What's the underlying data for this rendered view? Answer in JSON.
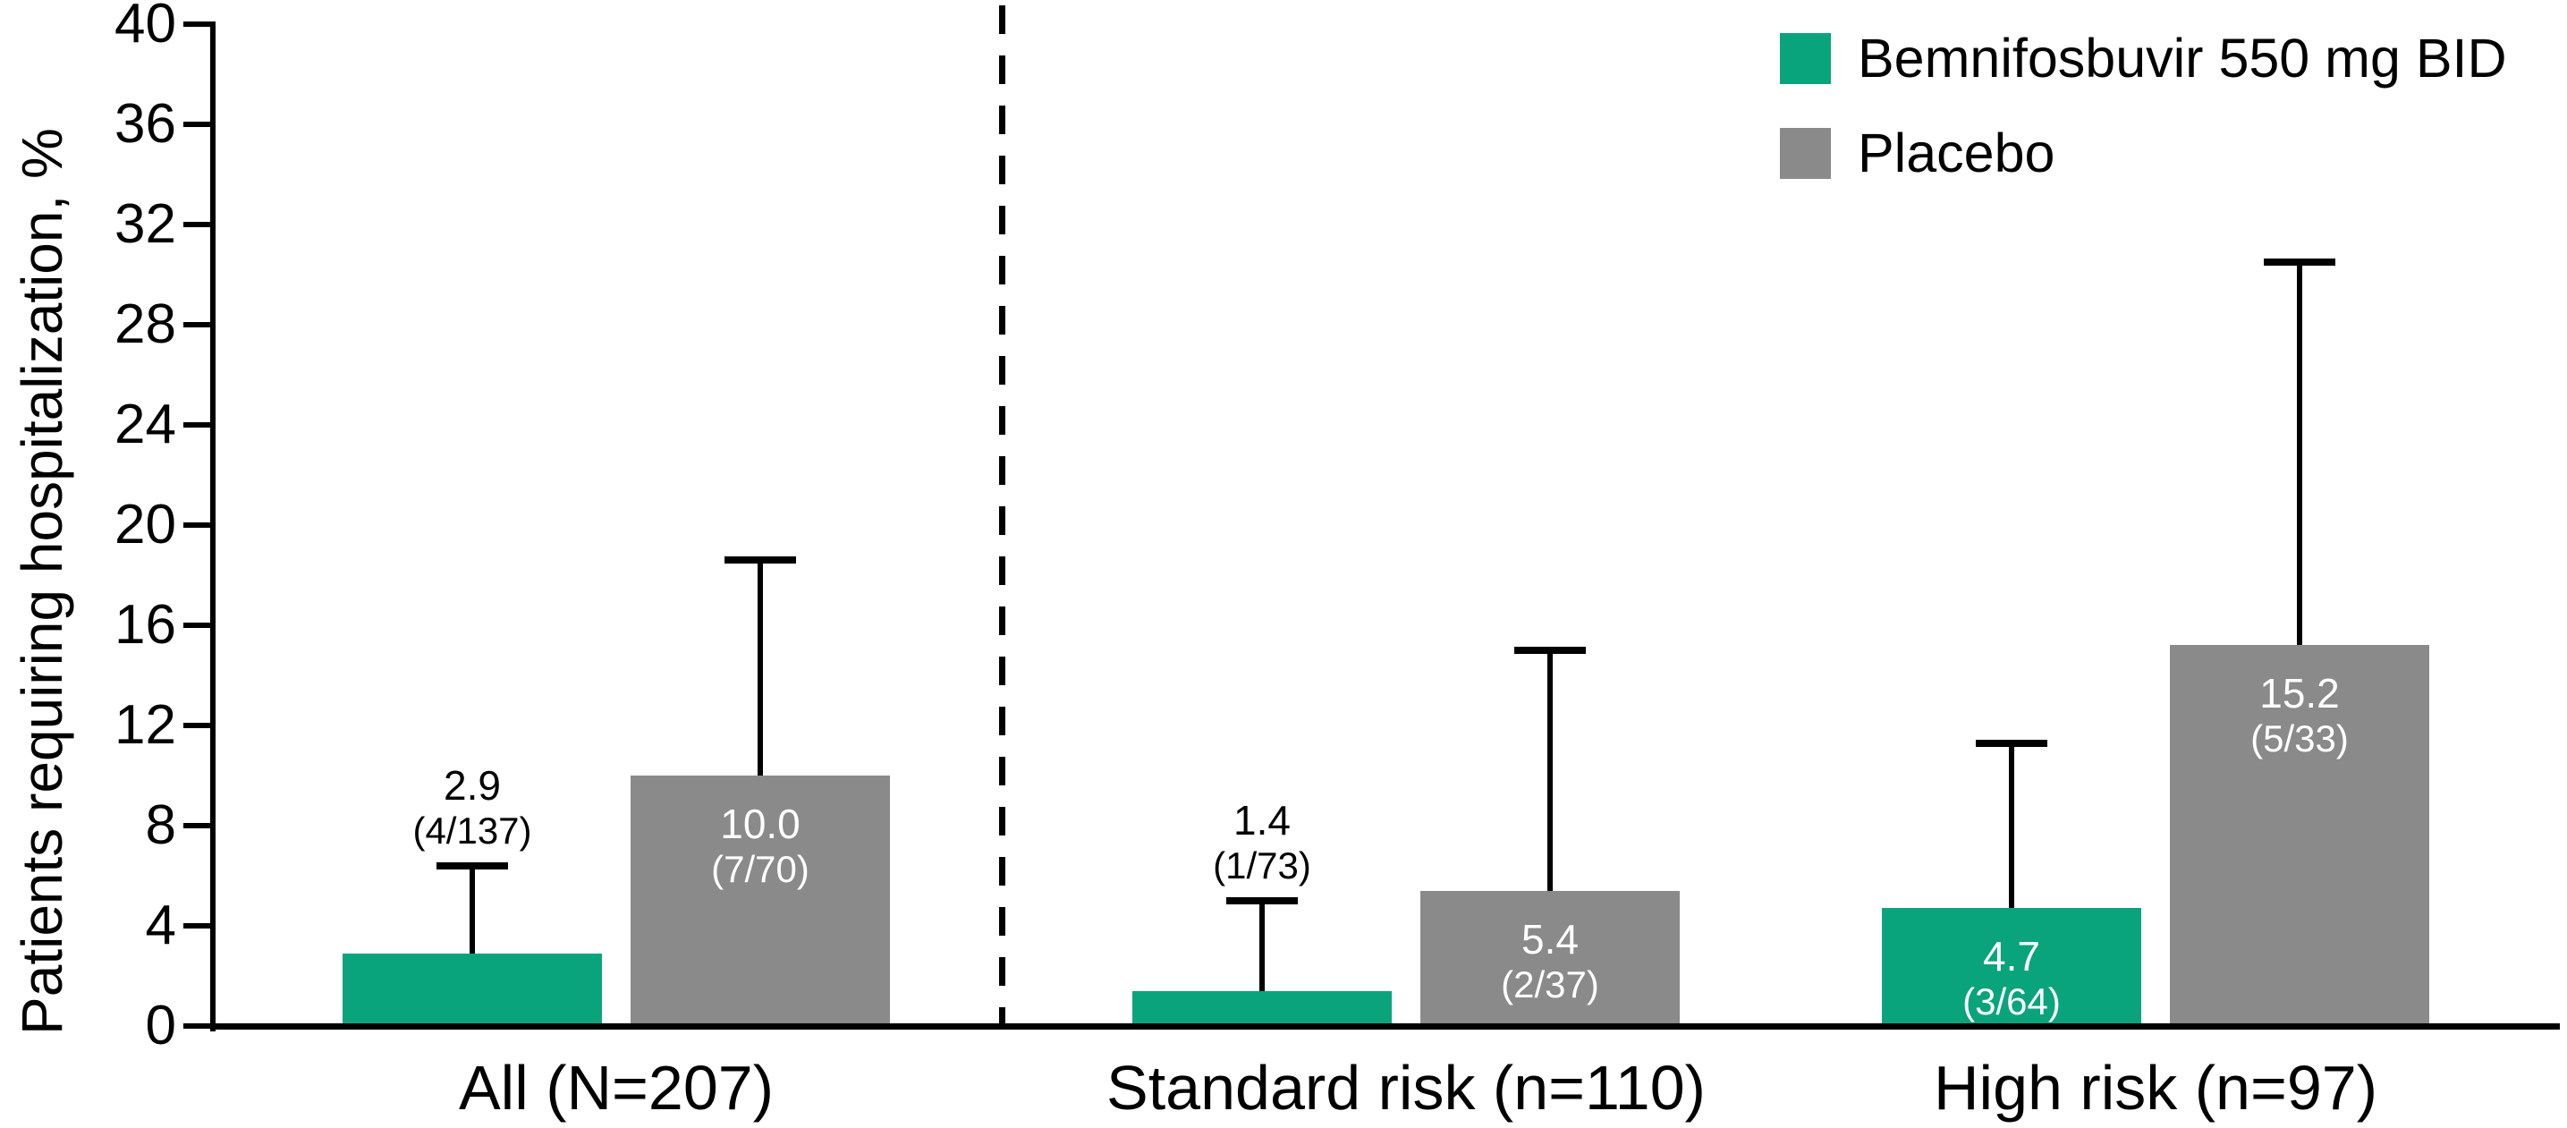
{
  "chart_data": {
    "type": "bar",
    "title": "",
    "xlabel": "",
    "ylabel": "Patients requiring hospitalization, %",
    "ylim": [
      0,
      40
    ],
    "yticks": [
      0,
      4,
      8,
      12,
      16,
      20,
      24,
      28,
      32,
      36,
      40
    ],
    "grid": false,
    "legend_position": "top-right",
    "separator_after_category_index": 0,
    "categories": [
      "All (N=207)",
      "Standard risk (n=110)",
      "High risk (n=97)"
    ],
    "series": [
      {
        "name": "Bemnifosbuvir 550 mg BID",
        "color": "#0AA47C",
        "values": [
          2.9,
          1.4,
          4.7
        ],
        "counts": [
          "4/137",
          "1/73",
          "3/64"
        ],
        "error_upper": [
          6.4,
          5.0,
          11.3
        ],
        "label_placement": [
          "above",
          "above",
          "inside"
        ]
      },
      {
        "name": "Placebo",
        "color": "#8A8A8A",
        "values": [
          10.0,
          5.4,
          15.2
        ],
        "counts": [
          "7/70",
          "2/37",
          "5/33"
        ],
        "error_upper": [
          18.6,
          15.0,
          30.5
        ],
        "label_placement": [
          "inside",
          "inside",
          "inside"
        ]
      }
    ],
    "colors": {
      "axis": "#000000",
      "label_above_text": "#000000",
      "label_inside_text": "#FFFFFF",
      "background": "#FFFFFF"
    }
  }
}
